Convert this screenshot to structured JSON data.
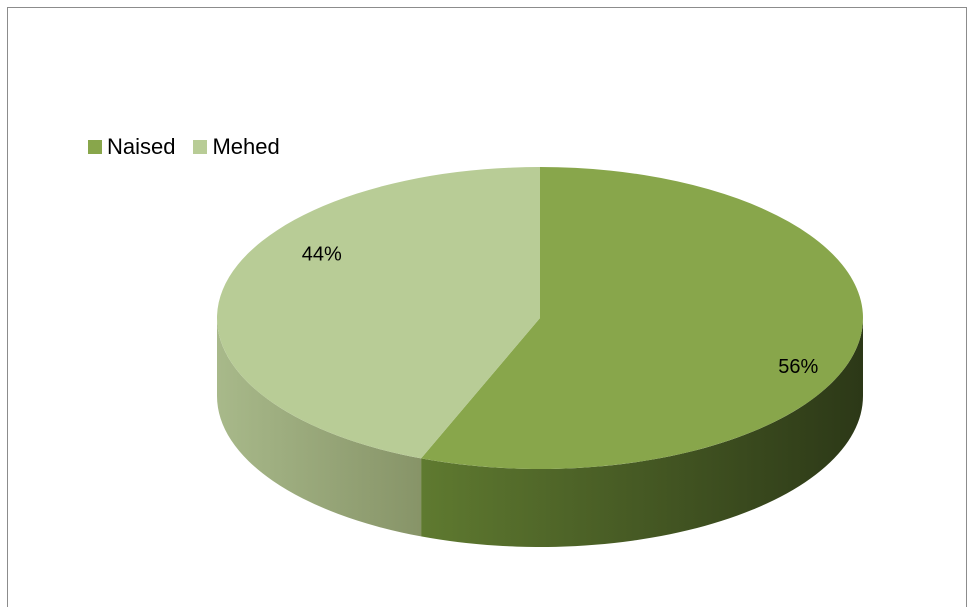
{
  "chart_data": {
    "type": "pie",
    "style": "3d",
    "categories": [
      "Naised",
      "Mehed"
    ],
    "values": [
      56,
      44
    ],
    "data_labels": [
      "56%",
      "44%"
    ],
    "colors": [
      "#88a64b",
      "#b8cc96"
    ],
    "side_colors_dark": [
      "#2e3a18",
      "#8e9c6c"
    ],
    "side_colors_light": [
      "#6a8a33",
      "#a6b788"
    ],
    "legend": {
      "placement": "top-left",
      "entries": [
        "Naised",
        "Mehed"
      ]
    },
    "title": ""
  }
}
